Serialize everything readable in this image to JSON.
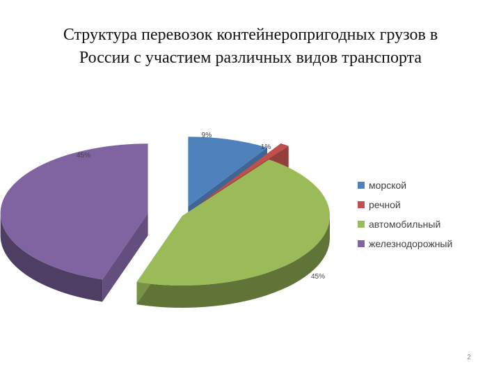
{
  "slide": {
    "title_line1": "Структура перевозок контейнеропригодных грузов в",
    "title_line2": "России с участием различных видов транспорта",
    "page_number": "2"
  },
  "chart_data": {
    "type": "pie",
    "title": "",
    "legend_position": "right",
    "slices": [
      {
        "name": "морской",
        "value": 9,
        "label": "9%",
        "color": "#4f81bd"
      },
      {
        "name": "речной",
        "value": 1,
        "label": "1%",
        "color": "#c0504d"
      },
      {
        "name": "автомобильный",
        "value": 45,
        "label": "45%",
        "color": "#9bbb59"
      },
      {
        "name": "железнодорожный",
        "value": 45,
        "label": "45%",
        "color": "#8064a2"
      }
    ]
  }
}
